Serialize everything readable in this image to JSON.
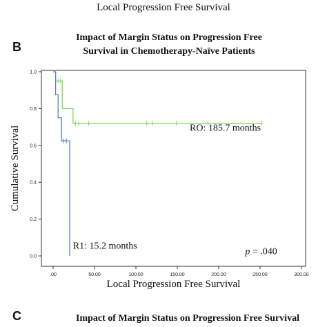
{
  "top_caption": "Local Progression Free Survival",
  "panel_b": "B",
  "panel_c": "C",
  "next_panel_title": "Impact of Margin Status on Progression Free Survival",
  "chart_data": {
    "type": "line",
    "step": true,
    "title_lines": [
      "Impact of Margin Status on Progression Free",
      "Survival in Chemotherapy-Naïve Patients"
    ],
    "xlabel": "Local Progression Free Survival",
    "ylabel": "Cumulative Survival",
    "xlim": [
      0,
      300
    ],
    "ylim": [
      0,
      1.0
    ],
    "x_ticks": [
      ".00",
      "50.00",
      "100.00",
      "150.00",
      "200.00",
      "250.00",
      "300.00"
    ],
    "x_tick_values": [
      0,
      50,
      100,
      150,
      200,
      250,
      300
    ],
    "y_ticks": [
      "0.0",
      "0.2",
      "0.4",
      "0.6",
      "0.8",
      "1.0"
    ],
    "y_tick_values": [
      0,
      0.2,
      0.4,
      0.6,
      0.8,
      1.0
    ],
    "grid": false,
    "series": [
      {
        "name": "R0",
        "color": "#7ed957",
        "steps": [
          [
            0,
            1.0
          ],
          [
            3,
            0.95
          ],
          [
            11,
            0.8
          ],
          [
            24,
            0.72
          ],
          [
            252,
            0.72
          ]
        ],
        "censored": [
          [
            6,
            0.95
          ],
          [
            9,
            0.95
          ],
          [
            27,
            0.72
          ],
          [
            31,
            0.72
          ],
          [
            43,
            0.72
          ],
          [
            113,
            0.72
          ],
          [
            120,
            0.72
          ],
          [
            149,
            0.72
          ],
          [
            187,
            0.72
          ],
          [
            252,
            0.72
          ]
        ]
      },
      {
        "name": "R1",
        "color": "#5b7fbf",
        "steps": [
          [
            0,
            1.0
          ],
          [
            3,
            0.875
          ],
          [
            6,
            0.75
          ],
          [
            10,
            0.625
          ],
          [
            20,
            0.0
          ]
        ],
        "censored": [
          [
            12,
            0.625
          ],
          [
            16,
            0.625
          ]
        ]
      }
    ],
    "annotations": [
      {
        "text": "RO: 185.7 months",
        "x": 165,
        "y": 0.68
      },
      {
        "text": "R1: 15.2 months",
        "x": 24,
        "y": 0.04
      },
      {
        "p_label": "p",
        "text": " = .040",
        "x": 232,
        "y": 0.01
      }
    ]
  }
}
